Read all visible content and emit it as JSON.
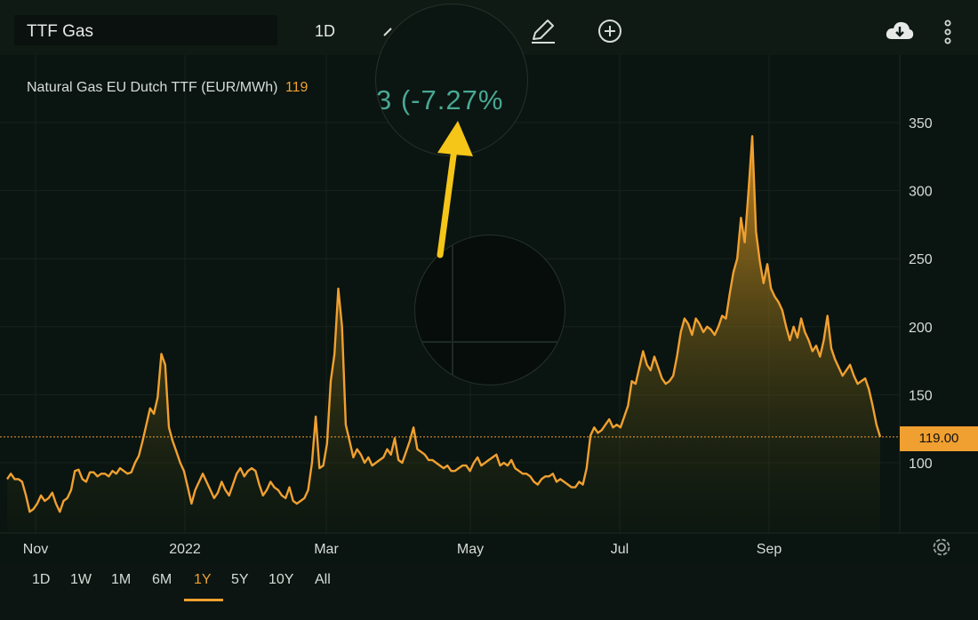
{
  "toolbar": {
    "symbol": "TTF Gas",
    "interval": "1D",
    "icons": [
      "chart-style-icon",
      "pencil-icon",
      "plus-circle-icon",
      "cloud-download-icon",
      "more-vertical-icon"
    ]
  },
  "legend": {
    "name": "Natural Gas EU Dutch TTF (EUR/MWh)",
    "value": "119"
  },
  "magnifier": {
    "change_text": "3 (-7.27%"
  },
  "price_tag": "119.00",
  "periods": [
    "1D",
    "1W",
    "1M",
    "6M",
    "1Y",
    "5Y",
    "10Y",
    "All"
  ],
  "active_period": "1Y",
  "colors": {
    "line": "#f0a030",
    "change_negative_text": "#48a894",
    "annotation_arrow": "#f5c518",
    "background": "#0a1410"
  },
  "chart_data": {
    "type": "area",
    "x_tick_labels": [
      "Nov",
      "2022",
      "Mar",
      "May",
      "Jul",
      "Sep"
    ],
    "y_tick_labels": [
      "100",
      "150",
      "200",
      "250",
      "300",
      "350"
    ],
    "ylim": [
      50,
      390
    ],
    "grid": true,
    "last_value": 119.0,
    "values": [
      88,
      92,
      88,
      88,
      86,
      76,
      64,
      66,
      70,
      76,
      72,
      74,
      78,
      70,
      64,
      72,
      74,
      80,
      94,
      95,
      88,
      86,
      93,
      93,
      90,
      92,
      92,
      90,
      94,
      92,
      96,
      94,
      92,
      93,
      100,
      105,
      116,
      128,
      140,
      136,
      148,
      180,
      172,
      126,
      116,
      108,
      100,
      94,
      82,
      70,
      80,
      86,
      92,
      86,
      80,
      74,
      78,
      86,
      80,
      76,
      84,
      92,
      96,
      90,
      94,
      96,
      94,
      84,
      76,
      80,
      86,
      82,
      80,
      76,
      74,
      82,
      72,
      70,
      72,
      74,
      80,
      100,
      134,
      96,
      98,
      114,
      160,
      180,
      228,
      200,
      128,
      116,
      104,
      110,
      106,
      100,
      104,
      98,
      100,
      102,
      104,
      110,
      106,
      118,
      102,
      100,
      108,
      116,
      126,
      110,
      108,
      106,
      102,
      102,
      100,
      98,
      96,
      98,
      94,
      94,
      96,
      98,
      98,
      94,
      100,
      104,
      98,
      100,
      102,
      104,
      106,
      98,
      100,
      98,
      102,
      96,
      94,
      92,
      92,
      90,
      86,
      84,
      88,
      90,
      90,
      92,
      86,
      88,
      86,
      84,
      82,
      82,
      86,
      84,
      96,
      120,
      126,
      122,
      124,
      128,
      132,
      126,
      128,
      126,
      134,
      142,
      160,
      158,
      170,
      182,
      172,
      168,
      178,
      170,
      162,
      158,
      160,
      164,
      178,
      196,
      206,
      202,
      194,
      206,
      202,
      196,
      200,
      198,
      194,
      200,
      208,
      206,
      224,
      240,
      250,
      280,
      262,
      300,
      340,
      270,
      248,
      232,
      246,
      228,
      222,
      218,
      212,
      200,
      190,
      200,
      192,
      206,
      196,
      190,
      182,
      186,
      178,
      190,
      208,
      184,
      176,
      170,
      164,
      168,
      172,
      164,
      158,
      160,
      162,
      154,
      142,
      128,
      119
    ]
  }
}
